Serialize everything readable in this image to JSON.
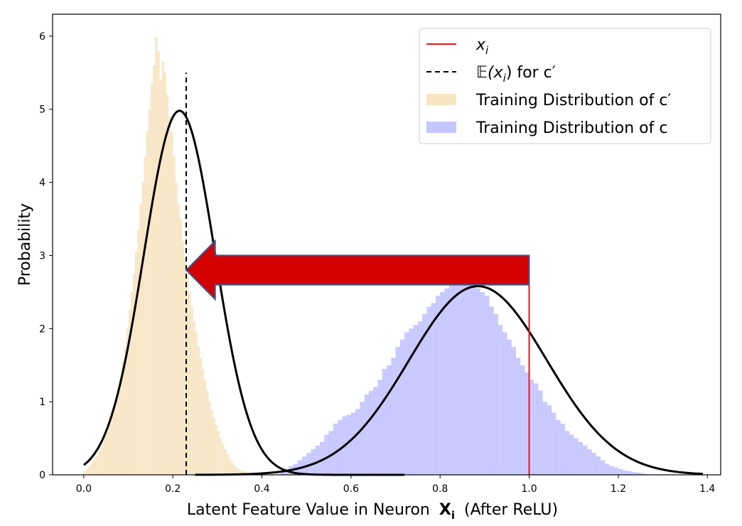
{
  "chart_data": {
    "type": "histogram",
    "xlabel": "Latent Feature Value in Neuron",
    "xlabel_symbol": "X",
    "xlabel_subscript": "i",
    "xlabel_suffix": "(After ReLU)",
    "ylabel": "Probability",
    "xlim": [
      -0.07,
      1.43
    ],
    "ylim": [
      0,
      6.3
    ],
    "xticks": [
      0.0,
      0.2,
      0.4,
      0.6,
      0.8,
      1.0,
      1.2,
      1.4
    ],
    "xtick_labels": [
      "0.0",
      "0.2",
      "0.4",
      "0.6",
      "0.8",
      "1.0",
      "1.2",
      "1.4"
    ],
    "yticks": [
      0,
      1,
      2,
      3,
      4,
      5,
      6
    ],
    "ytick_labels": [
      "0",
      "1",
      "2",
      "3",
      "4",
      "5",
      "6"
    ],
    "grid": false,
    "legend_position": "top-right",
    "legend": [
      {
        "label_main": "x",
        "label_sub": "i",
        "label_rest": "",
        "kind": "solid-line",
        "color": "#e8151b"
      },
      {
        "label_main": "𝔼(x",
        "label_sub": "i",
        "label_rest": ") for c′",
        "kind": "dashed-line",
        "color": "#000000"
      },
      {
        "label_main": "Training Distribution of c′",
        "label_sub": "",
        "label_rest": "",
        "kind": "patch",
        "color": "#f5deb3"
      },
      {
        "label_main": "Training Distribution of c",
        "label_sub": "",
        "label_rest": "",
        "kind": "patch",
        "color": "#b8b8ff"
      }
    ],
    "series": [
      {
        "name": "Training Distribution of c′",
        "kind": "histogram",
        "color": "#f5deb3",
        "opacity": 0.7,
        "bin_edges_start": 0.0,
        "bin_width": 0.005,
        "values": [
          0.05,
          0.08,
          0.12,
          0.15,
          0.2,
          0.25,
          0.3,
          0.38,
          0.45,
          0.55,
          0.6,
          0.7,
          0.8,
          0.95,
          1.05,
          1.2,
          1.35,
          1.55,
          1.75,
          2.0,
          2.25,
          2.5,
          2.75,
          3.05,
          3.35,
          3.7,
          4.0,
          4.35,
          4.7,
          5.0,
          5.35,
          5.6,
          5.99,
          5.8,
          5.4,
          5.65,
          5.5,
          5.2,
          4.9,
          4.7,
          4.35,
          4.0,
          3.7,
          3.5,
          3.2,
          2.95,
          2.75,
          2.5,
          2.3,
          2.1,
          1.95,
          1.75,
          1.6,
          1.45,
          1.3,
          1.15,
          1.0,
          0.88,
          0.78,
          0.68,
          0.6,
          0.5,
          0.42,
          0.35,
          0.28,
          0.22,
          0.17,
          0.13,
          0.1,
          0.08,
          0.06,
          0.05,
          0.04,
          0.03,
          0.02,
          0.02,
          0.01,
          0.01,
          0.01,
          0.01
        ]
      },
      {
        "name": "Training Distribution of c",
        "kind": "histogram",
        "color": "#b8b8ff",
        "opacity": 0.75,
        "bin_edges_start": 0.44,
        "bin_width": 0.01,
        "values": [
          0.05,
          0.08,
          0.12,
          0.15,
          0.2,
          0.25,
          0.3,
          0.35,
          0.4,
          0.45,
          0.55,
          0.6,
          0.7,
          0.75,
          0.8,
          0.82,
          0.85,
          0.9,
          1.0,
          1.1,
          1.15,
          1.2,
          1.3,
          1.45,
          1.5,
          1.6,
          1.75,
          1.85,
          1.95,
          2.0,
          2.05,
          2.1,
          2.2,
          2.3,
          2.35,
          2.45,
          2.5,
          2.55,
          2.6,
          2.7,
          2.75,
          2.7,
          2.68,
          2.65,
          2.55,
          2.5,
          2.45,
          2.3,
          2.2,
          2.05,
          1.95,
          1.85,
          1.75,
          1.6,
          1.5,
          1.4,
          1.3,
          1.25,
          1.15,
          1.0,
          0.95,
          0.85,
          0.75,
          0.7,
          0.6,
          0.55,
          0.5,
          0.45,
          0.4,
          0.35,
          0.3,
          0.25,
          0.2,
          0.15,
          0.12,
          0.1,
          0.08,
          0.06,
          0.05,
          0.04,
          0.03,
          0.02,
          0.01
        ]
      },
      {
        "name": "Gaussian fit c′",
        "kind": "curve",
        "color": "#000000",
        "mean": 0.215,
        "peak": 4.98,
        "sigma": 0.08,
        "x_range": [
          0.0,
          0.72
        ]
      },
      {
        "name": "Gaussian fit c",
        "kind": "curve",
        "color": "#000000",
        "mean": 0.885,
        "peak": 2.58,
        "sigma": 0.155,
        "x_range": [
          0.25,
          1.39
        ]
      },
      {
        "name": "x_i",
        "kind": "vline",
        "color": "#e8151b",
        "x": 1.0,
        "y_range": [
          0,
          3.0
        ]
      },
      {
        "name": "E(x_i) for c′",
        "kind": "vline-dashed",
        "color": "#000000",
        "x": 0.23,
        "y_range": [
          0,
          5.5
        ]
      }
    ],
    "annotations": [
      {
        "kind": "arrow",
        "fill": "#d40000",
        "stroke": "#3b5998",
        "x_tail": 1.0,
        "x_head": 0.23,
        "y_top": 3.0,
        "y_bottom": 2.6,
        "head_y_top": 3.2,
        "head_y_bottom": 2.4,
        "head_x": 0.295
      }
    ]
  }
}
